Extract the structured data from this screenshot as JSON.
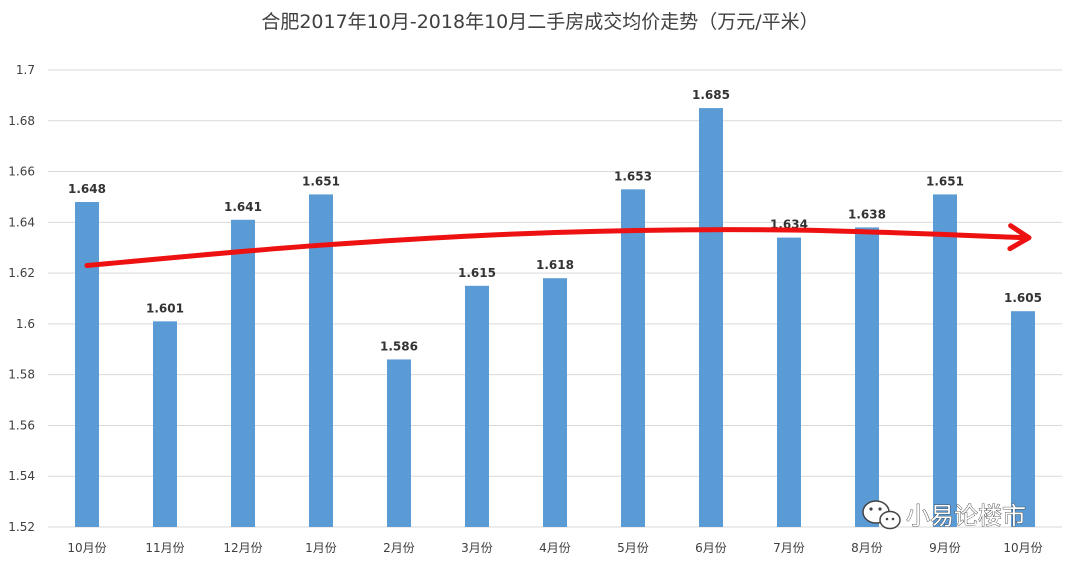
{
  "colors": {
    "bar": "#5b9bd5",
    "grid": "#d9d9d9",
    "trend": "#ee1111",
    "text": "#404040"
  },
  "chart_data": {
    "type": "bar",
    "title": "合肥2017年10月-2018年10月二手房成交均价走势（万元/平米）",
    "xlabel": "",
    "ylabel": "",
    "categories": [
      "10月份",
      "11月份",
      "12月份",
      "1月份",
      "2月份",
      "3月份",
      "4月份",
      "5月份",
      "6月份",
      "7月份",
      "8月份",
      "9月份",
      "10月份"
    ],
    "series": [
      {
        "values": [
          1.648,
          1.601,
          1.641,
          1.651,
          1.586,
          1.615,
          1.618,
          1.653,
          1.685,
          1.634,
          1.638,
          1.651,
          1.605
        ]
      }
    ],
    "data_labels": [
      "1.648",
      "1.601",
      "1.641",
      "1.651",
      "1.586",
      "1.615",
      "1.618",
      "1.653",
      "1.685",
      "1.634",
      "1.638",
      "1.651",
      "1.605"
    ],
    "ylim": [
      1.52,
      1.7
    ],
    "yticks": [
      1.52,
      1.54,
      1.56,
      1.58,
      1.6,
      1.62,
      1.64,
      1.66,
      1.68,
      1.7
    ],
    "ytick_labels": [
      "1.52",
      "1.54",
      "1.56",
      "1.58",
      "1.6",
      "1.62",
      "1.64",
      "1.66",
      "1.68",
      "1.7"
    ],
    "grid": true,
    "legend": "none",
    "annotations": {
      "trend_arrow": {
        "description": "hand-drawn red trend arrow",
        "points": [
          {
            "category": 0,
            "value": 1.623
          },
          {
            "category": 3,
            "value": 1.631
          },
          {
            "category": 6,
            "value": 1.636
          },
          {
            "category": 9,
            "value": 1.637
          },
          {
            "category": 12,
            "value": 1.634
          }
        ]
      }
    }
  },
  "watermark": {
    "text": "小易论楼市",
    "icon": "wechat-icon"
  }
}
